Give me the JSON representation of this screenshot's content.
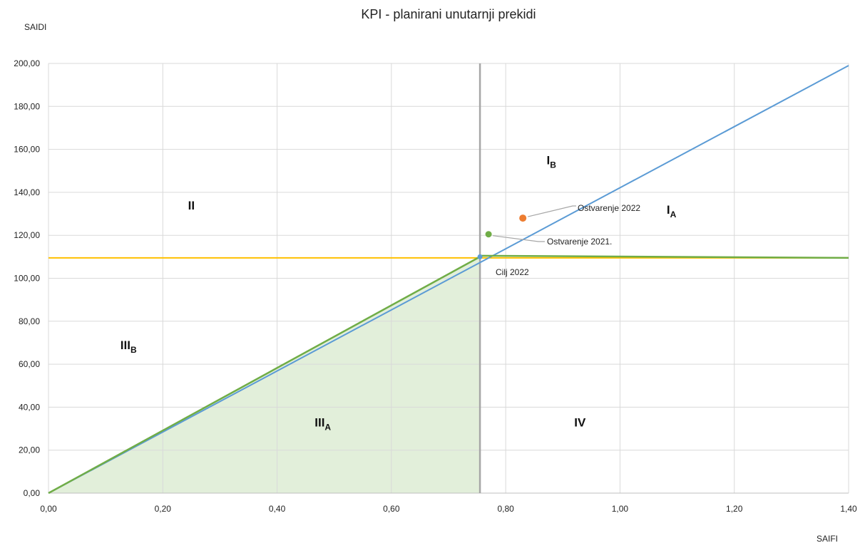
{
  "chart_data": {
    "type": "scatter",
    "title": "KPI - planirani unutarnji prekidi",
    "ylabel": "SAIDI",
    "xlabel": "SAIFI",
    "xlim": [
      0,
      1.4
    ],
    "ylim": [
      0,
      200
    ],
    "x_ticks": [
      0,
      0.2,
      0.4,
      0.6,
      0.8,
      1.0,
      1.2,
      1.4
    ],
    "x_tick_labels": [
      "0,00",
      "0,20",
      "0,40",
      "0,60",
      "0,80",
      "1,00",
      "1,20",
      "1,40"
    ],
    "y_ticks": [
      0,
      20,
      40,
      60,
      80,
      100,
      120,
      140,
      160,
      180,
      200
    ],
    "y_tick_labels": [
      "0,00",
      "20,00",
      "40,00",
      "60,00",
      "80,00",
      "100,00",
      "120,00",
      "140,00",
      "160,00",
      "180,00",
      "200,00"
    ],
    "grid": true,
    "colors": {
      "blue_line": "#5B9BD5",
      "target_horizontal": "#FFC000",
      "target_vertical": "#A6A6A6",
      "green_region": "#70AD47",
      "green_fill": "#E2EFDA",
      "point_2022": "#ED7D31",
      "point_2021": "#70AD47",
      "gridline": "#D9D9D9"
    },
    "lines": {
      "ratio_line": {
        "x": [
          0,
          1.4
        ],
        "y": [
          0,
          199
        ]
      },
      "target_saidi": 109.5,
      "target_saifi": 0.755,
      "green_boundary": {
        "x": [
          0,
          0.755,
          0.755,
          1.4
        ],
        "y": [
          0,
          110,
          110.5,
          109.5
        ]
      }
    },
    "points": [
      {
        "label": "Ostvarenje 2022",
        "x": 0.83,
        "y": 128
      },
      {
        "label": "Ostvarenje 2021.",
        "x": 0.77,
        "y": 120.5
      },
      {
        "label": "Cilj 2022",
        "x": 0.755,
        "y": 110
      }
    ],
    "regions": [
      {
        "label": "I",
        "sub": "B",
        "x": 0.88,
        "y": 153
      },
      {
        "label": "I",
        "sub": "A",
        "x": 1.09,
        "y": 130
      },
      {
        "label": "II",
        "sub": "",
        "x": 0.25,
        "y": 132
      },
      {
        "label": "III",
        "sub": "B",
        "x": 0.14,
        "y": 67
      },
      {
        "label": "III",
        "sub": "A",
        "x": 0.48,
        "y": 31
      },
      {
        "label": "IV",
        "sub": "",
        "x": 0.93,
        "y": 31
      }
    ]
  }
}
